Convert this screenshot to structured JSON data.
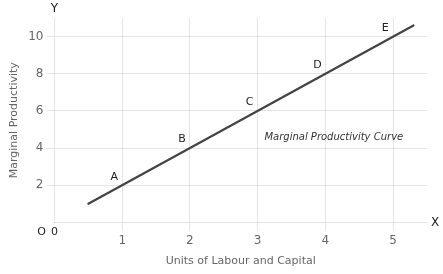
{
  "chart_data": {
    "type": "line",
    "xlabel": "Units of Labour and Capital",
    "ylabel": "Marginal Productivity",
    "x": [
      0.5,
      5.3
    ],
    "series": [
      {
        "color": "#444444",
        "values": [
          1.0,
          10.6
        ]
      }
    ],
    "points": [
      {
        "label": "A",
        "x": 1,
        "y": 2
      },
      {
        "label": "B",
        "x": 2,
        "y": 4
      },
      {
        "label": "C",
        "x": 3,
        "y": 6
      },
      {
        "label": "D",
        "x": 4,
        "y": 8
      },
      {
        "label": "E",
        "x": 5,
        "y": 10
      }
    ],
    "annotations": [
      {
        "text": "Marginal Productivity Curve",
        "x": 3.1,
        "y": 4.85
      },
      {
        "text": "Y"
      },
      {
        "text": "X"
      },
      {
        "text": "O"
      },
      {
        "text": "0"
      }
    ],
    "xlim": [
      0,
      5.5
    ],
    "ylim": [
      0,
      11.0
    ],
    "xticks": [
      1,
      2,
      3,
      4,
      5
    ],
    "yticks": [
      2,
      4,
      6,
      8,
      10
    ],
    "grid": true
  }
}
